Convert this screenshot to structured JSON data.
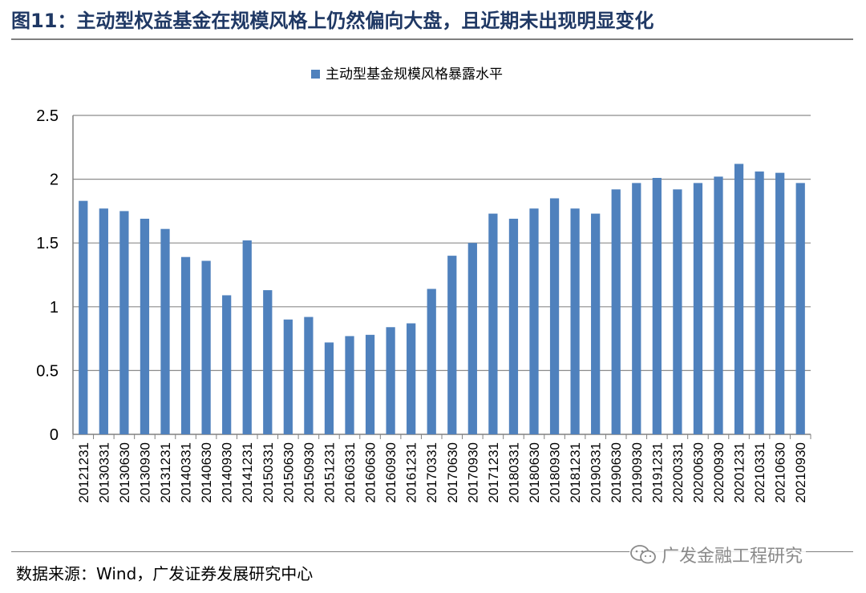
{
  "figure": {
    "title": "图11：主动型权益基金在规模风格上仍然偏向大盘，且近期未出现明显变化",
    "source": "数据来源：Wind，广发证券发展研究中心",
    "watermark": "广发金融工程研究",
    "watermark_icon": "wechat-icon"
  },
  "colors": {
    "bar": "#4f81bd",
    "title": "#1f3864",
    "grid": "#8c8c8c",
    "rule": "#7f7f7f"
  },
  "chart_data": {
    "type": "bar",
    "title": "",
    "xlabel": "",
    "ylabel": "",
    "ylim": [
      0,
      2.5
    ],
    "yticks": [
      "0",
      "0.5",
      "1",
      "1.5",
      "2",
      "2.5"
    ],
    "ytick_values": [
      0,
      0.5,
      1,
      1.5,
      2,
      2.5
    ],
    "grid": true,
    "legend_position": "top-center",
    "categories": [
      "20121231",
      "20130331",
      "20130630",
      "20130930",
      "20131231",
      "20140331",
      "20140630",
      "20140930",
      "20141231",
      "20150331",
      "20150630",
      "20150930",
      "20151231",
      "20160331",
      "20160630",
      "20160930",
      "20161231",
      "20170331",
      "20170630",
      "20170930",
      "20171231",
      "20180331",
      "20180630",
      "20180930",
      "20181231",
      "20190331",
      "20190630",
      "20190930",
      "20191231",
      "20200331",
      "20200630",
      "20200930",
      "20201231",
      "20210331",
      "20210630",
      "20210930"
    ],
    "series": [
      {
        "name": "主动型基金规模风格暴露水平",
        "values": [
          1.83,
          1.77,
          1.75,
          1.69,
          1.61,
          1.39,
          1.36,
          1.09,
          1.52,
          1.13,
          0.9,
          0.92,
          0.72,
          0.77,
          0.78,
          0.84,
          0.87,
          1.14,
          1.4,
          1.5,
          1.73,
          1.69,
          1.77,
          1.85,
          1.77,
          1.73,
          1.92,
          1.97,
          2.01,
          1.92,
          1.97,
          2.02,
          2.12,
          2.06,
          2.05,
          1.97
        ]
      }
    ]
  }
}
